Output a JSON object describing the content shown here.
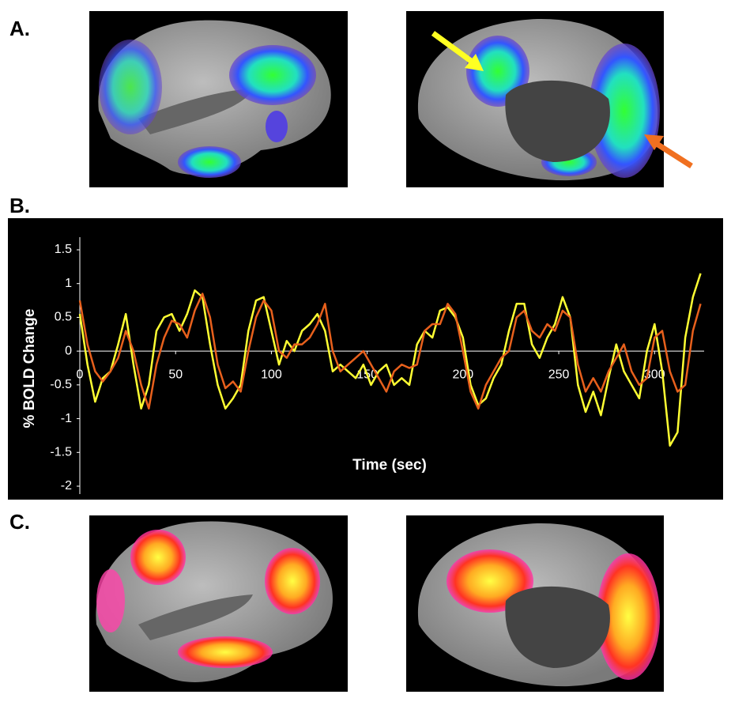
{
  "panels": [
    "A.",
    "B.",
    "C."
  ],
  "chart_data": {
    "type": "line",
    "xlabel": "Time (sec)",
    "ylabel": "% BOLD Change",
    "x": [
      0,
      4,
      8,
      12,
      16,
      20,
      24,
      28,
      32,
      36,
      40,
      44,
      48,
      52,
      56,
      60,
      64,
      68,
      72,
      76,
      80,
      84,
      88,
      92,
      96,
      100,
      104,
      108,
      112,
      116,
      120,
      124,
      128,
      132,
      136,
      140,
      144,
      148,
      152,
      156,
      160,
      164,
      168,
      172,
      176,
      180,
      184,
      188,
      192,
      196,
      200,
      204,
      208,
      212,
      216,
      220,
      224,
      228,
      232,
      236,
      240,
      244,
      248,
      252,
      256,
      260,
      264,
      268,
      272,
      276,
      280,
      284,
      288,
      292,
      296,
      300,
      304,
      308,
      312,
      316,
      320,
      324
    ],
    "series": [
      {
        "color": "#ffff33",
        "values": [
          0.55,
          -0.2,
          -0.75,
          -0.4,
          -0.3,
          0.1,
          0.55,
          -0.2,
          -0.85,
          -0.5,
          0.3,
          0.5,
          0.55,
          0.3,
          0.55,
          0.9,
          0.8,
          0.1,
          -0.5,
          -0.85,
          -0.7,
          -0.5,
          0.3,
          0.75,
          0.8,
          0.3,
          -0.2,
          0.15,
          0.0,
          0.3,
          0.4,
          0.55,
          0.3,
          -0.3,
          -0.2,
          -0.3,
          -0.4,
          -0.2,
          -0.5,
          -0.3,
          -0.2,
          -0.5,
          -0.4,
          -0.5,
          0.1,
          0.3,
          0.2,
          0.6,
          0.65,
          0.5,
          0.2,
          -0.5,
          -0.8,
          -0.7,
          -0.4,
          -0.2,
          0.3,
          0.7,
          0.7,
          0.1,
          -0.1,
          0.2,
          0.4,
          0.8,
          0.5,
          -0.5,
          -0.9,
          -0.6,
          -0.95,
          -0.4,
          0.1,
          -0.3,
          -0.5,
          -0.7,
          0.0,
          0.4,
          -0.3,
          -1.4,
          -1.2,
          0.2,
          0.8,
          1.15
        ]
      },
      {
        "color": "#e8601c",
        "values": [
          0.75,
          0.1,
          -0.3,
          -0.45,
          -0.3,
          -0.1,
          0.3,
          0.0,
          -0.5,
          -0.85,
          -0.2,
          0.2,
          0.45,
          0.4,
          0.2,
          0.6,
          0.85,
          0.5,
          -0.2,
          -0.55,
          -0.45,
          -0.6,
          0.0,
          0.5,
          0.75,
          0.6,
          0.0,
          -0.1,
          0.1,
          0.1,
          0.2,
          0.4,
          0.7,
          0.0,
          -0.3,
          -0.2,
          -0.1,
          0.0,
          -0.2,
          -0.4,
          -0.6,
          -0.3,
          -0.2,
          -0.25,
          -0.2,
          0.3,
          0.4,
          0.4,
          0.7,
          0.55,
          0.0,
          -0.6,
          -0.85,
          -0.5,
          -0.3,
          -0.1,
          0.0,
          0.5,
          0.6,
          0.3,
          0.2,
          0.4,
          0.3,
          0.6,
          0.5,
          -0.2,
          -0.6,
          -0.4,
          -0.6,
          -0.3,
          -0.1,
          0.1,
          -0.3,
          -0.5,
          -0.4,
          0.2,
          0.3,
          -0.3,
          -0.6,
          -0.5,
          0.3,
          0.7
        ]
      }
    ],
    "xlim": [
      0,
      330
    ],
    "xticks": [
      0,
      50,
      100,
      150,
      200,
      250,
      300
    ],
    "ylim": [
      -2,
      1.5
    ],
    "yticks": [
      1.5,
      1,
      0.5,
      0,
      -0.5,
      -1,
      -1.5,
      -2
    ]
  }
}
